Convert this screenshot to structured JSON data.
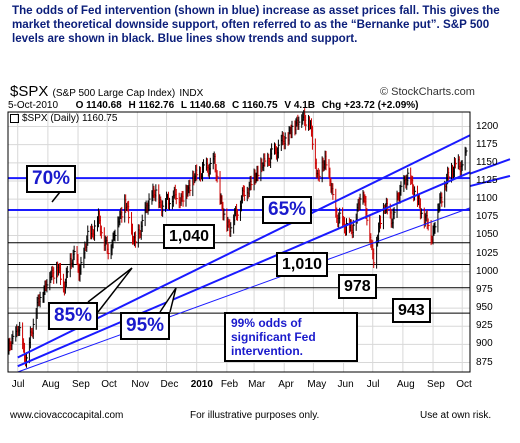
{
  "intro_text": "The odds of Fed intervention (shown in blue) increase as asset prices fall.  This gives the market theoretical downside support, often referred to as the “Bernanke put”.  S&P 500 levels are shown in black.  Blue lines show trends and support.",
  "header": {
    "symbol": "$SPX",
    "description": "(S&P 500 Large Cap Index)",
    "exchange": "INDX",
    "logo": "© StockCharts.com",
    "date": "5-Oct-2010",
    "open": "O 1140.68",
    "high": "H 1162.76",
    "low": "L 1140.68",
    "close": "C 1160.75",
    "volume": "V 4.1B",
    "change": "Chg +23.72 (+2.09%)",
    "legend": "$SPX (Daily) 1160.75"
  },
  "footer": {
    "website": "www.ciovaccocapital.com",
    "note": "For illustrative purposes only.",
    "risk": "Use at own risk."
  },
  "colors": {
    "frame": "#000000",
    "grid": "#d8d8d8",
    "up": "#000000",
    "down": "#cc0000",
    "blue": "#1a1aff",
    "label_text": "#1a1acc"
  },
  "chart_data": {
    "type": "candlestick",
    "ylim": [
      862,
      1220
    ],
    "yticks": [
      875,
      900,
      925,
      950,
      975,
      1000,
      1025,
      1050,
      1075,
      1100,
      1125,
      1150,
      1175,
      1200
    ],
    "x_range": [
      "2009-06-21",
      "2010-10-09"
    ],
    "xticks": [
      {
        "label": "Jul",
        "date": "2009-07-01",
        "bold": false
      },
      {
        "label": "Aug",
        "date": "2009-08-01",
        "bold": false
      },
      {
        "label": "Sep",
        "date": "2009-09-01",
        "bold": false
      },
      {
        "label": "Oct",
        "date": "2009-10-01",
        "bold": false
      },
      {
        "label": "Nov",
        "date": "2009-11-01",
        "bold": false
      },
      {
        "label": "Dec",
        "date": "2009-12-01",
        "bold": false
      },
      {
        "label": "2010",
        "date": "2010-01-01",
        "bold": true
      },
      {
        "label": "Feb",
        "date": "2010-02-01",
        "bold": false
      },
      {
        "label": "Mar",
        "date": "2010-03-01",
        "bold": false
      },
      {
        "label": "Apr",
        "date": "2010-04-01",
        "bold": false
      },
      {
        "label": "May",
        "date": "2010-05-01",
        "bold": false
      },
      {
        "label": "Jun",
        "date": "2010-06-01",
        "bold": false
      },
      {
        "label": "Jul",
        "date": "2010-07-01",
        "bold": false
      },
      {
        "label": "Aug",
        "date": "2010-08-01",
        "bold": false
      },
      {
        "label": "Sep",
        "date": "2010-09-01",
        "bold": false
      },
      {
        "label": "Oct",
        "date": "2010-10-01",
        "bold": false
      }
    ],
    "price_path": [
      [
        "2009-06-22",
        893
      ],
      [
        "2009-07-01",
        923
      ],
      [
        "2009-07-10",
        879
      ],
      [
        "2009-07-20",
        950
      ],
      [
        "2009-07-31",
        987
      ],
      [
        "2009-08-10",
        1007
      ],
      [
        "2009-08-17",
        980
      ],
      [
        "2009-08-28",
        1028
      ],
      [
        "2009-09-02",
        995
      ],
      [
        "2009-09-10",
        1044
      ],
      [
        "2009-09-22",
        1071
      ],
      [
        "2009-10-02",
        1026
      ],
      [
        "2009-10-19",
        1097
      ],
      [
        "2009-10-30",
        1036
      ],
      [
        "2009-11-06",
        1069
      ],
      [
        "2009-11-17",
        1110
      ],
      [
        "2009-11-27",
        1091
      ],
      [
        "2009-12-07",
        1104
      ],
      [
        "2009-12-18",
        1102
      ],
      [
        "2009-12-28",
        1127
      ],
      [
        "2010-01-05",
        1137
      ],
      [
        "2010-01-19",
        1150
      ],
      [
        "2010-01-29",
        1073
      ],
      [
        "2010-02-05",
        1063
      ],
      [
        "2010-02-18",
        1106
      ],
      [
        "2010-03-05",
        1138
      ],
      [
        "2010-03-22",
        1165
      ],
      [
        "2010-04-05",
        1187
      ],
      [
        "2010-04-15",
        1210
      ],
      [
        "2010-04-26",
        1212
      ],
      [
        "2010-05-06",
        1128
      ],
      [
        "2010-05-13",
        1157
      ],
      [
        "2010-05-25",
        1074
      ],
      [
        "2010-06-04",
        1064
      ],
      [
        "2010-06-09",
        1055
      ],
      [
        "2010-06-21",
        1113
      ],
      [
        "2010-06-30",
        1030
      ],
      [
        "2010-07-02",
        1022
      ],
      [
        "2010-07-13",
        1095
      ],
      [
        "2010-07-20",
        1070
      ],
      [
        "2010-08-02",
        1125
      ],
      [
        "2010-08-09",
        1127
      ],
      [
        "2010-08-17",
        1092
      ],
      [
        "2010-08-27",
        1064
      ],
      [
        "2010-08-31",
        1049
      ],
      [
        "2010-09-08",
        1098
      ],
      [
        "2010-09-20",
        1142
      ],
      [
        "2010-09-28",
        1147
      ],
      [
        "2010-10-01",
        1146
      ],
      [
        "2010-10-05",
        1160
      ]
    ],
    "annotations": {
      "levels": [
        {
          "label": "1,040",
          "value": 1040
        },
        {
          "label": "1,010",
          "value": 1010
        },
        {
          "label": "978",
          "value": 978
        },
        {
          "label": "943",
          "value": 943
        }
      ],
      "blue_support": [
        {
          "label": "70%",
          "value": 1129
        },
        {
          "label": "65%",
          "value": 1085
        }
      ],
      "trend_labels": [
        "85%",
        "95%"
      ],
      "note": "99% odds of significant Fed intervention."
    }
  }
}
